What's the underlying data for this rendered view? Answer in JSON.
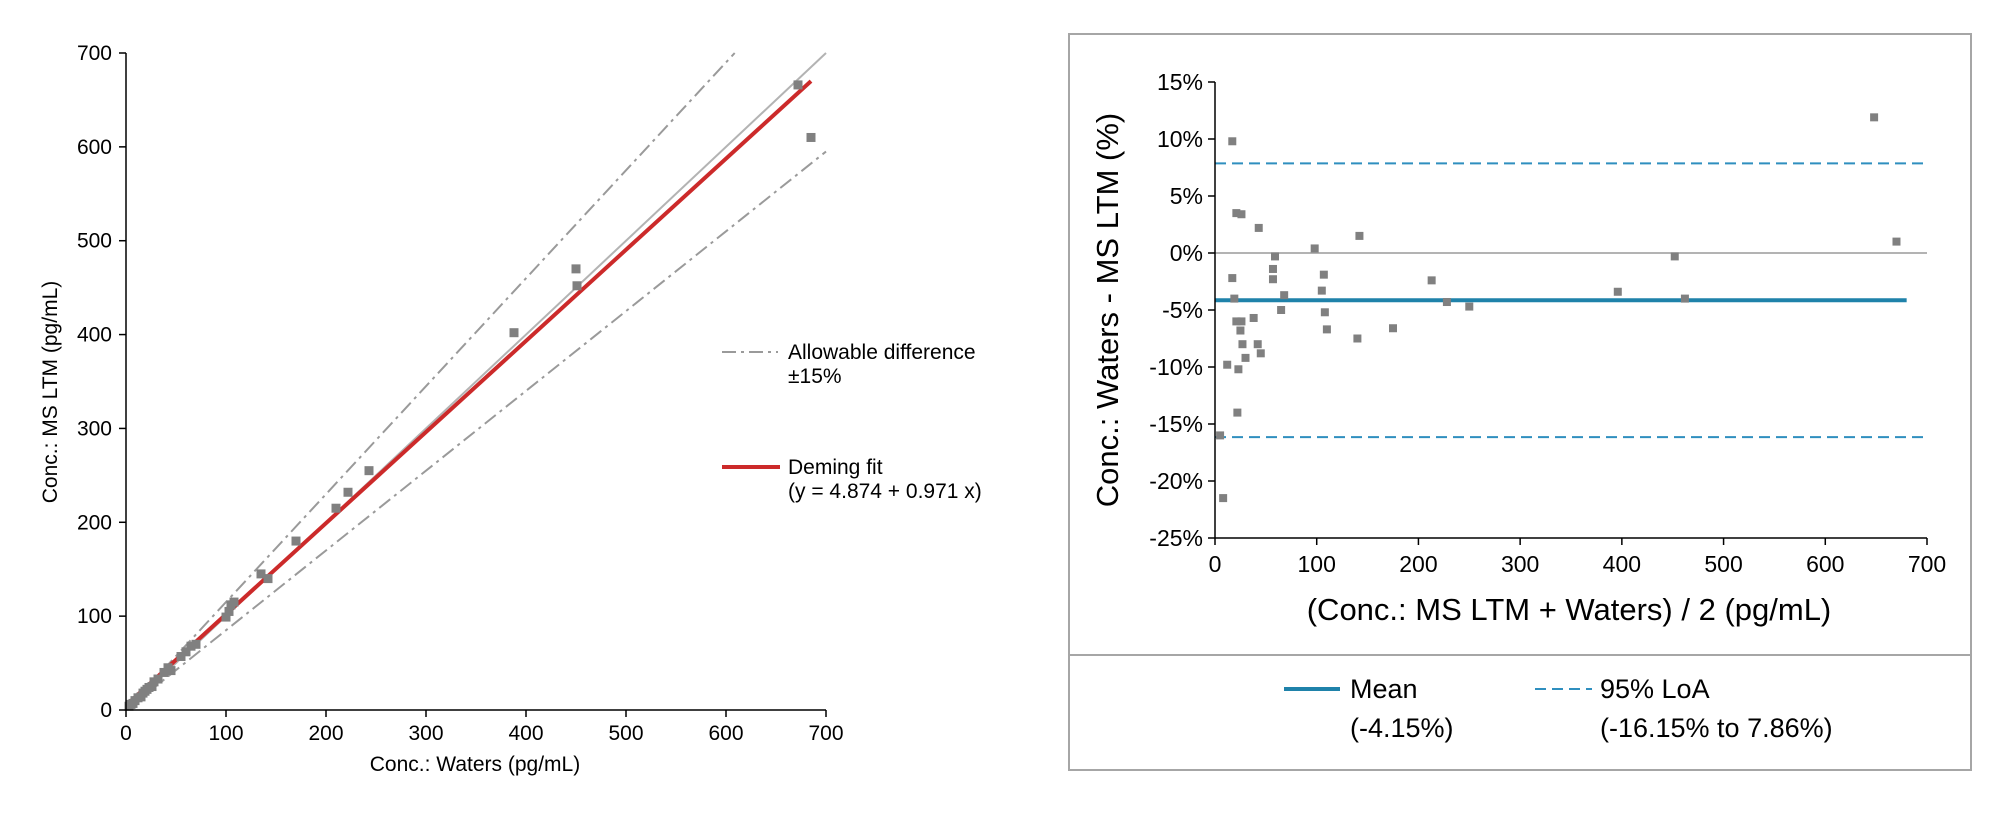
{
  "colors": {
    "point": "#808080",
    "deming": "#cc2a2a",
    "identity": "#b3b3b3",
    "allowable": "#9a9a9a",
    "mean": "#1f82aa",
    "loa": "#2f8fbf",
    "zero": "#9a9a9a",
    "frame": "#a6a6a6",
    "axis": "#000000"
  },
  "chart_data": [
    {
      "type": "scatter",
      "xlabel": "Conc.: Waters (pg/mL)",
      "ylabel": "Conc.: MS LTM (pg/mL)",
      "xlim": [
        0,
        700
      ],
      "ylim": [
        0,
        700
      ],
      "xticks": [
        "0",
        "100",
        "200",
        "300",
        "400",
        "500",
        "600",
        "700"
      ],
      "yticks": [
        "0",
        "100",
        "200",
        "300",
        "400",
        "500",
        "600",
        "700"
      ],
      "legend": [
        {
          "label_line1": "Allowable difference",
          "label_line2": "±15%",
          "style": "dash-dot"
        },
        {
          "label_line1": "Deming fit",
          "label_line2": "(y = 4.874 + 0.971 x)",
          "style": "solid-red"
        }
      ],
      "deming": {
        "intercept": 4.874,
        "slope": 0.971,
        "x_range": [
          0,
          685
        ]
      },
      "identity": {
        "x_range": [
          0,
          700
        ]
      },
      "allowable": {
        "upper_slope": 1.15,
        "lower_slope": 0.85,
        "x_range": [
          0,
          700
        ]
      },
      "points": [
        [
          3,
          4
        ],
        [
          5,
          6
        ],
        [
          7,
          7
        ],
        [
          9,
          10
        ],
        [
          12,
          13
        ],
        [
          15,
          14
        ],
        [
          17,
          18
        ],
        [
          19,
          20
        ],
        [
          21,
          22
        ],
        [
          23,
          24
        ],
        [
          26,
          25
        ],
        [
          28,
          30
        ],
        [
          32,
          33
        ],
        [
          38,
          40
        ],
        [
          42,
          45
        ],
        [
          45,
          42
        ],
        [
          55,
          57
        ],
        [
          60,
          62
        ],
        [
          65,
          68
        ],
        [
          70,
          70
        ],
        [
          100,
          99
        ],
        [
          103,
          105
        ],
        [
          105,
          112
        ],
        [
          108,
          115
        ],
        [
          135,
          145
        ],
        [
          142,
          140
        ],
        [
          170,
          180
        ],
        [
          210,
          215
        ],
        [
          222,
          232
        ],
        [
          243,
          255
        ],
        [
          388,
          402
        ],
        [
          450,
          470
        ],
        [
          451,
          452
        ],
        [
          672,
          666
        ],
        [
          685,
          610
        ]
      ]
    },
    {
      "type": "scatter",
      "xlabel": "(Conc.: MS LTM + Waters) / 2 (pg/mL)",
      "ylabel": "Conc.: Waters - MS LTM (%)",
      "xlim": [
        0,
        700
      ],
      "ylim": [
        -25,
        15
      ],
      "xticks": [
        "0",
        "100",
        "200",
        "300",
        "400",
        "500",
        "600",
        "700"
      ],
      "yticks": [
        {
          "v": 15,
          "label": "15%"
        },
        {
          "v": 10,
          "label": "10%"
        },
        {
          "v": 5,
          "label": "5%"
        },
        {
          "v": 0,
          "label": "0%"
        },
        {
          "v": -5,
          "label": "-5%"
        },
        {
          "v": -10,
          "label": "-10%"
        },
        {
          "v": -15,
          "label": "-15%"
        },
        {
          "v": -20,
          "label": "-20%"
        },
        {
          "v": -25,
          "label": "-25%"
        }
      ],
      "mean": -4.15,
      "loa": [
        -16.15,
        7.86
      ],
      "legend": [
        {
          "label_line1": "Mean",
          "label_line2": "(-4.15%)",
          "style": "solid-blue"
        },
        {
          "label_line1": "95% LoA",
          "label_line2": "(-16.15% to 7.86%)",
          "style": "dashed-blue"
        }
      ],
      "points": [
        [
          5,
          -16.0
        ],
        [
          8,
          -21.5
        ],
        [
          12,
          -9.8
        ],
        [
          17,
          -2.2
        ],
        [
          17,
          9.8
        ],
        [
          19,
          -4.0
        ],
        [
          21,
          3.5
        ],
        [
          21,
          -6.0
        ],
        [
          22,
          -14.0
        ],
        [
          23,
          -10.2
        ],
        [
          25,
          -6.8
        ],
        [
          26,
          3.4
        ],
        [
          26,
          -6.0
        ],
        [
          27,
          -8.0
        ],
        [
          30,
          -9.2
        ],
        [
          38,
          -5.7
        ],
        [
          42,
          -8.0
        ],
        [
          43,
          2.2
        ],
        [
          45,
          -8.8
        ],
        [
          57,
          -2.3
        ],
        [
          57,
          -1.4
        ],
        [
          59,
          -0.3
        ],
        [
          65,
          -5.0
        ],
        [
          68,
          -3.7
        ],
        [
          98,
          0.4
        ],
        [
          105,
          -3.3
        ],
        [
          107,
          -1.9
        ],
        [
          108,
          -5.2
        ],
        [
          110,
          -6.7
        ],
        [
          140,
          -7.5
        ],
        [
          142,
          1.5
        ],
        [
          175,
          -6.6
        ],
        [
          213,
          -2.4
        ],
        [
          228,
          -4.3
        ],
        [
          250,
          -4.7
        ],
        [
          396,
          -3.4
        ],
        [
          452,
          -0.3
        ],
        [
          462,
          -4.0
        ],
        [
          648,
          11.9
        ],
        [
          670,
          1.0
        ]
      ]
    }
  ]
}
